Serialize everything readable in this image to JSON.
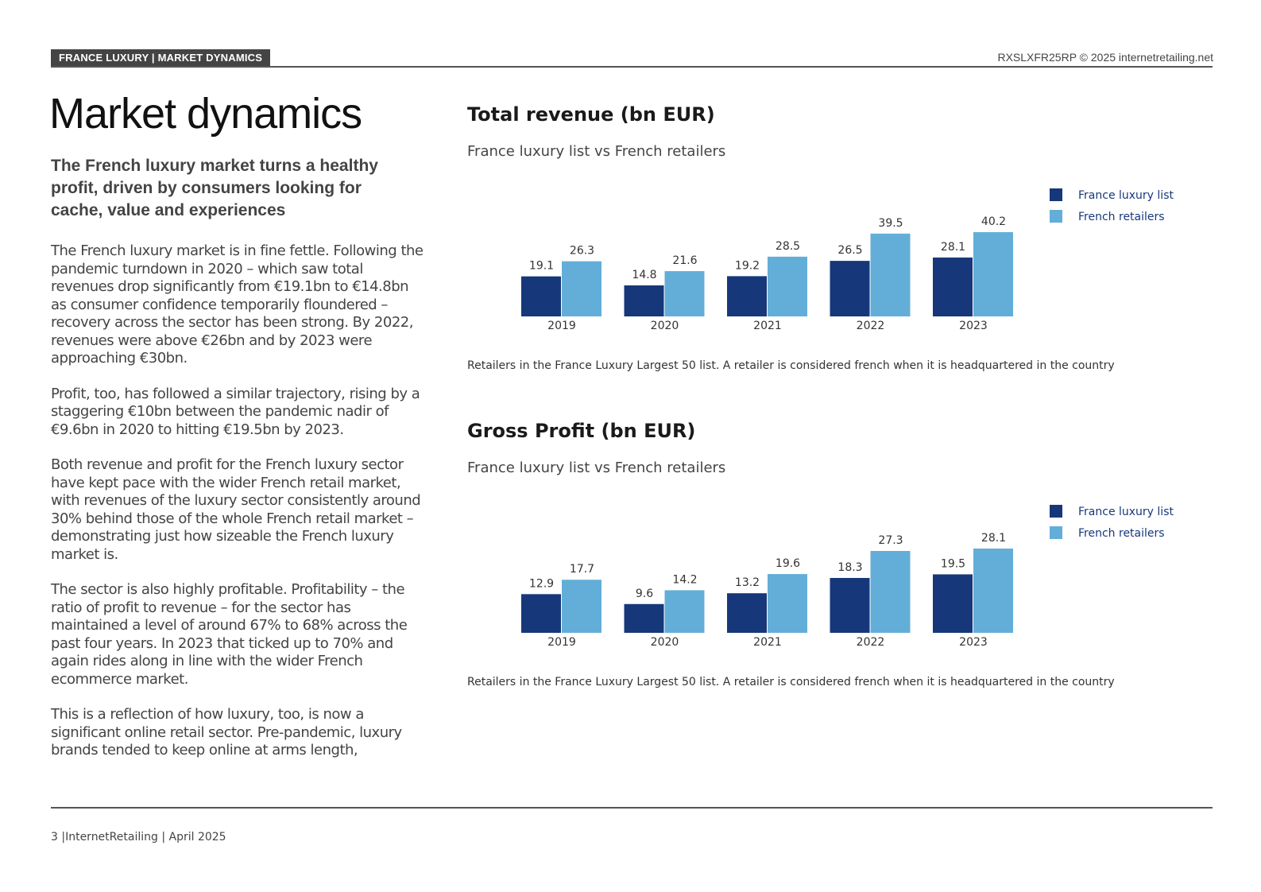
{
  "header": {
    "tag": "FRANCE LUXURY | MARKET DYNAMICS",
    "right_text": "RXSLXFR25RP © 2025 internetretailing.net"
  },
  "title": "Market dynamics",
  "lead": "The French luxury market turns a healthy profit, driven by consumers looking for cache, value and experiences",
  "paragraphs": [
    "The French luxury market is in fine fettle. Following the pandemic turndown in 2020 – which saw total revenues drop significantly from €19.1bn to €14.8bn as consumer confidence temporarily floundered – recovery across the sector has been strong. By 2022, revenues were above €26bn and by 2023 were approaching €30bn.",
    "Profit, too, has followed a similar trajectory, rising by a staggering €10bn between the pandemic nadir of €9.6bn in 2020 to hitting €19.5bn by 2023.",
    "Both revenue and profit for the French luxury sector have kept pace with the wider French retail market, with revenues of the luxury sector consistently around 30% behind those of the whole French retail market – demonstrating just how sizeable the French luxury market is.",
    "The sector is also highly profitable. Profitability – the ratio of profit to revenue – for the sector has maintained a level of around 67% to 68% across the past four years. In 2023 that ticked up to 70% and again rides along in line with the wider French ecommerce market.",
    "This is a reflection of how luxury, too, is now a significant online retail sector. Pre-pandemic, luxury brands tended to keep online at arms length,"
  ],
  "colors": {
    "france_luxury_list": "#16387a",
    "french_retailers": "#63aed8"
  },
  "chart_data": [
    {
      "type": "bar",
      "title": "Total revenue (bn EUR)",
      "subtitle": "France luxury list vs French retailers",
      "categories": [
        "2019",
        "2020",
        "2021",
        "2022",
        "2023"
      ],
      "series": [
        {
          "name": "France luxury list",
          "values": [
            19.1,
            14.8,
            19.2,
            26.5,
            28.1
          ]
        },
        {
          "name": "French retailers",
          "values": [
            26.3,
            21.6,
            28.5,
            39.5,
            40.2
          ]
        }
      ],
      "ylim": [
        0,
        40.2
      ],
      "grid": false,
      "legend_position": "top-right",
      "note": "Retailers in the France Luxury Largest 50 list. A retailer is considered french when it is headquartered in the country"
    },
    {
      "type": "bar",
      "title": "Gross Profit (bn EUR)",
      "subtitle": "France luxury list vs French retailers",
      "categories": [
        "2019",
        "2020",
        "2021",
        "2022",
        "2023"
      ],
      "series": [
        {
          "name": "France luxury list",
          "values": [
            12.9,
            9.6,
            13.2,
            18.3,
            19.5
          ]
        },
        {
          "name": "French retailers",
          "values": [
            17.7,
            14.2,
            19.6,
            27.3,
            28.1
          ]
        }
      ],
      "ylim": [
        0,
        28.1
      ],
      "grid": false,
      "legend_position": "top-right",
      "note": "Retailers in the France Luxury Largest 50 list. A retailer is considered french when it is headquartered in the country"
    }
  ],
  "footer": {
    "text": "3 |InternetRetailing | April 2025"
  }
}
